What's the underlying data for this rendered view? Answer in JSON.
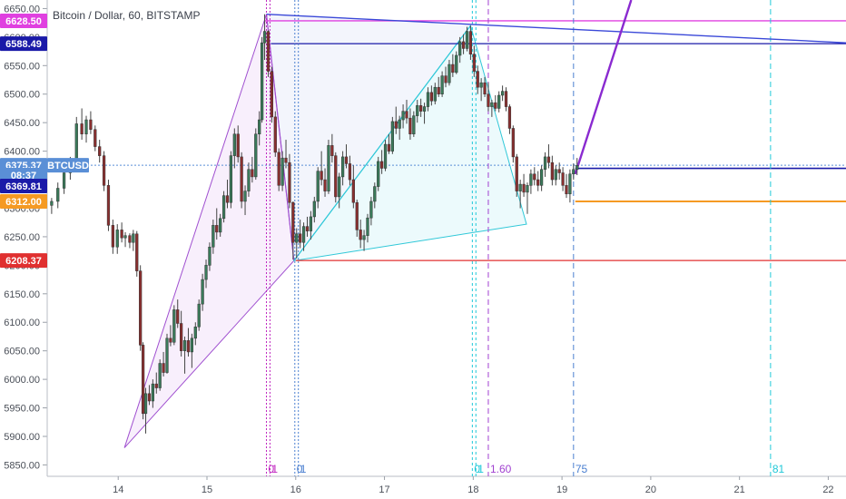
{
  "chart_data": {
    "type": "candlestick",
    "title": "Bitcoin / Dollar, 60, BITSTAMP",
    "symbol_label": "BTCUSD",
    "ylim": [
      5830,
      6665
    ],
    "xlim": [
      13.2,
      22.2
    ],
    "y_ticks": [
      "5850.00",
      "5900.00",
      "5950.00",
      "6000.00",
      "6050.00",
      "6100.00",
      "6150.00",
      "6200.00",
      "6250.00",
      "6300.00",
      "6350.00",
      "6400.00",
      "6450.00",
      "6500.00",
      "6550.00",
      "6600.00",
      "6650.00"
    ],
    "x_ticks": [
      "14",
      "15",
      "16",
      "17",
      "18",
      "19",
      "20",
      "21",
      "22"
    ],
    "price_badges": [
      {
        "label": "6628.50",
        "value": 6628.5,
        "color": "#e040e0"
      },
      {
        "label": "6588.49",
        "value": 6588.49,
        "color": "#1a1aa8"
      },
      {
        "label": "BTCUSD",
        "value": 6375.37,
        "color": "#5a8fd6"
      },
      {
        "label": "6375.37",
        "value": 6375.37,
        "color": "#5a8fd6"
      },
      {
        "label": "08:37",
        "value": 6358,
        "color": "#5a8fd6"
      },
      {
        "label": "6369.81",
        "value": 6339,
        "color": "#1a1aa8"
      },
      {
        "label": "6312.00",
        "value": 6312.0,
        "color": "#f59a23"
      },
      {
        "label": "6208.37",
        "value": 6208.37,
        "color": "#e03030"
      }
    ],
    "horizontal_lines": [
      {
        "y": 6628.5,
        "x_start": 15.65,
        "color": "#e040e0",
        "width": 1.4,
        "dash": "none"
      },
      {
        "y": 6588.49,
        "x_start": 15.72,
        "color": "#1a1aa8",
        "width": 1.2,
        "dash": "none"
      },
      {
        "y": 6369.81,
        "x_start": 19.15,
        "color": "#1a1aa8",
        "width": 1.6,
        "dash": "none"
      },
      {
        "y": 6312.0,
        "x_start": 19.15,
        "color": "#f59a23",
        "width": 2,
        "dash": "none"
      },
      {
        "y": 6208.37,
        "x_start": 16.0,
        "color": "#e03030",
        "width": 1.2,
        "dash": "none"
      },
      {
        "y": 6375.37,
        "x_start": 13.2,
        "color": "#5a8fd6",
        "width": 1,
        "dash": "2,2"
      }
    ],
    "vertical_lines": [
      {
        "x": 15.67,
        "color": "#c026c0",
        "dash": "2,2",
        "label": "0"
      },
      {
        "x": 15.71,
        "color": "#c026c0",
        "dash": "2,2",
        "label": "1"
      },
      {
        "x": 15.99,
        "color": "#4a7fd0",
        "dash": "2,2",
        "label": "0"
      },
      {
        "x": 16.03,
        "color": "#4a7fd0",
        "dash": "2,2",
        "label": "1"
      },
      {
        "x": 17.99,
        "color": "#1fc8d8",
        "dash": "3,3",
        "label": "0"
      },
      {
        "x": 18.03,
        "color": "#1fc8d8",
        "dash": "3,3",
        "label": "1"
      },
      {
        "x": 18.17,
        "color": "#a040d0",
        "dash": "6,4",
        "label": "1.60"
      },
      {
        "x": 19.13,
        "color": "#4a7fd0",
        "dash": "6,4",
        "label": "75"
      },
      {
        "x": 21.35,
        "color": "#1fc8d8",
        "dash": "6,4",
        "label": "81"
      }
    ],
    "pattern_points": {
      "X": [
        14.07,
        5880
      ],
      "A": [
        15.67,
        6640
      ],
      "B": [
        15.98,
        6208
      ],
      "C": [
        17.97,
        6620
      ],
      "D_ext": [
        18.6,
        6272
      ],
      "trend_start": [
        15.67,
        6640
      ],
      "trend_end": [
        22.2,
        6590
      ],
      "proj_start": [
        19.15,
        6360
      ],
      "proj_end": [
        19.78,
        6665
      ]
    },
    "candles": [
      [
        13.25,
        6305,
        6318,
        6290,
        6312
      ],
      [
        13.32,
        6312,
        6345,
        6300,
        6335
      ],
      [
        13.39,
        6335,
        6370,
        6325,
        6362
      ],
      [
        13.46,
        6362,
        6390,
        6350,
        6378
      ],
      [
        13.53,
        6378,
        6460,
        6370,
        6448
      ],
      [
        13.59,
        6448,
        6475,
        6420,
        6430
      ],
      [
        13.64,
        6430,
        6462,
        6415,
        6455
      ],
      [
        13.69,
        6455,
        6470,
        6430,
        6438
      ],
      [
        13.74,
        6438,
        6445,
        6400,
        6408
      ],
      [
        13.79,
        6408,
        6420,
        6380,
        6392
      ],
      [
        13.84,
        6392,
        6400,
        6330,
        6340
      ],
      [
        13.89,
        6340,
        6350,
        6260,
        6270
      ],
      [
        13.94,
        6270,
        6280,
        6220,
        6232
      ],
      [
        13.99,
        6232,
        6272,
        6220,
        6262
      ],
      [
        14.04,
        6262,
        6275,
        6240,
        6248
      ],
      [
        14.08,
        6248,
        6258,
        6232,
        6252
      ],
      [
        14.13,
        6252,
        6256,
        6230,
        6240
      ],
      [
        14.17,
        6240,
        6262,
        6225,
        6255
      ],
      [
        14.21,
        6255,
        6260,
        6180,
        6190
      ],
      [
        14.25,
        6190,
        6200,
        6050,
        6060
      ],
      [
        14.28,
        6060,
        6065,
        5930,
        5940
      ],
      [
        14.31,
        5940,
        5985,
        5905,
        5975
      ],
      [
        14.35,
        5975,
        5990,
        5955,
        5962
      ],
      [
        14.39,
        5962,
        6000,
        5950,
        5992
      ],
      [
        14.43,
        5992,
        6012,
        5975,
        5985
      ],
      [
        14.47,
        5985,
        6035,
        5980,
        6028
      ],
      [
        14.51,
        6028,
        6048,
        6005,
        6012
      ],
      [
        14.55,
        6012,
        6080,
        6010,
        6072
      ],
      [
        14.59,
        6072,
        6095,
        6058,
        6065
      ],
      [
        14.63,
        6065,
        6130,
        6060,
        6122
      ],
      [
        14.67,
        6122,
        6140,
        6090,
        6098
      ],
      [
        14.71,
        6098,
        6120,
        6040,
        6050
      ],
      [
        14.75,
        6050,
        6075,
        6010,
        6068
      ],
      [
        14.79,
        6068,
        6090,
        6040,
        6048
      ],
      [
        14.83,
        6048,
        6080,
        6020,
        6072
      ],
      [
        14.87,
        6072,
        6100,
        6060,
        6092
      ],
      [
        14.91,
        6092,
        6140,
        6085,
        6132
      ],
      [
        14.95,
        6132,
        6185,
        6120,
        6175
      ],
      [
        14.99,
        6175,
        6210,
        6160,
        6200
      ],
      [
        15.03,
        6200,
        6240,
        6190,
        6232
      ],
      [
        15.07,
        6232,
        6280,
        6220,
        6270
      ],
      [
        15.11,
        6270,
        6300,
        6245,
        6258
      ],
      [
        15.15,
        6258,
        6290,
        6250,
        6282
      ],
      [
        15.19,
        6282,
        6330,
        6275,
        6322
      ],
      [
        15.23,
        6322,
        6350,
        6300,
        6310
      ],
      [
        15.27,
        6310,
        6400,
        6300,
        6392
      ],
      [
        15.31,
        6392,
        6440,
        6370,
        6430
      ],
      [
        15.35,
        6430,
        6445,
        6380,
        6390
      ],
      [
        15.39,
        6390,
        6398,
        6300,
        6312
      ],
      [
        15.43,
        6312,
        6340,
        6288,
        6330
      ],
      [
        15.47,
        6330,
        6380,
        6320,
        6368
      ],
      [
        15.51,
        6368,
        6390,
        6345,
        6355
      ],
      [
        15.55,
        6355,
        6440,
        6350,
        6430
      ],
      [
        15.59,
        6430,
        6470,
        6410,
        6455
      ],
      [
        15.62,
        6455,
        6600,
        6450,
        6590
      ],
      [
        15.65,
        6590,
        6640,
        6560,
        6610
      ],
      [
        15.69,
        6610,
        6612,
        6530,
        6540
      ],
      [
        15.73,
        6540,
        6548,
        6450,
        6460
      ],
      [
        15.77,
        6460,
        6470,
        6390,
        6398
      ],
      [
        15.81,
        6398,
        6405,
        6330,
        6340
      ],
      [
        15.85,
        6340,
        6400,
        6330,
        6388
      ],
      [
        15.89,
        6388,
        6420,
        6370,
        6380
      ],
      [
        15.93,
        6380,
        6395,
        6300,
        6310
      ],
      [
        15.97,
        6310,
        6312,
        6210,
        6240
      ],
      [
        16.01,
        6240,
        6265,
        6212,
        6255
      ],
      [
        16.05,
        6255,
        6280,
        6230,
        6240
      ],
      [
        16.09,
        6240,
        6275,
        6225,
        6268
      ],
      [
        16.13,
        6268,
        6285,
        6250,
        6260
      ],
      [
        16.17,
        6260,
        6295,
        6245,
        6285
      ],
      [
        16.21,
        6285,
        6320,
        6275,
        6312
      ],
      [
        16.25,
        6312,
        6372,
        6300,
        6365
      ],
      [
        16.29,
        6365,
        6400,
        6340,
        6350
      ],
      [
        16.33,
        6350,
        6370,
        6320,
        6330
      ],
      [
        16.37,
        6330,
        6420,
        6325,
        6410
      ],
      [
        16.41,
        6410,
        6430,
        6380,
        6392
      ],
      [
        16.45,
        6392,
        6398,
        6310,
        6320
      ],
      [
        16.49,
        6320,
        6362,
        6300,
        6355
      ],
      [
        16.53,
        6355,
        6400,
        6340,
        6390
      ],
      [
        16.57,
        6390,
        6412,
        6370,
        6378
      ],
      [
        16.61,
        6378,
        6392,
        6340,
        6350
      ],
      [
        16.65,
        6350,
        6375,
        6300,
        6310
      ],
      [
        16.69,
        6310,
        6315,
        6250,
        6262
      ],
      [
        16.73,
        6262,
        6280,
        6230,
        6245
      ],
      [
        16.77,
        6245,
        6262,
        6225,
        6252
      ],
      [
        16.81,
        6252,
        6290,
        6240,
        6283
      ],
      [
        16.85,
        6283,
        6320,
        6270,
        6312
      ],
      [
        16.89,
        6312,
        6345,
        6300,
        6338
      ],
      [
        16.93,
        6338,
        6390,
        6330,
        6382
      ],
      [
        16.97,
        6382,
        6402,
        6360,
        6370
      ],
      [
        17.01,
        6370,
        6420,
        6365,
        6412
      ],
      [
        17.05,
        6412,
        6430,
        6395,
        6400
      ],
      [
        17.09,
        6400,
        6460,
        6395,
        6452
      ],
      [
        17.13,
        6452,
        6478,
        6430,
        6440
      ],
      [
        17.17,
        6440,
        6462,
        6420,
        6455
      ],
      [
        17.21,
        6455,
        6482,
        6440,
        6470
      ],
      [
        17.25,
        6470,
        6490,
        6448,
        6458
      ],
      [
        17.29,
        6458,
        6475,
        6420,
        6430
      ],
      [
        17.33,
        6430,
        6470,
        6425,
        6462
      ],
      [
        17.37,
        6462,
        6490,
        6450,
        6480
      ],
      [
        17.41,
        6480,
        6492,
        6460,
        6470
      ],
      [
        17.45,
        6470,
        6485,
        6448,
        6478
      ],
      [
        17.49,
        6478,
        6512,
        6470,
        6503
      ],
      [
        17.53,
        6503,
        6515,
        6480,
        6488
      ],
      [
        17.57,
        6488,
        6520,
        6482,
        6512
      ],
      [
        17.61,
        6512,
        6530,
        6495,
        6500
      ],
      [
        17.65,
        6500,
        6540,
        6495,
        6532
      ],
      [
        17.69,
        6532,
        6548,
        6512,
        6520
      ],
      [
        17.73,
        6520,
        6560,
        6515,
        6552
      ],
      [
        17.77,
        6552,
        6570,
        6530,
        6538
      ],
      [
        17.81,
        6538,
        6575,
        6535,
        6568
      ],
      [
        17.85,
        6568,
        6600,
        6555,
        6592
      ],
      [
        17.89,
        6592,
        6605,
        6570,
        6580
      ],
      [
        17.93,
        6580,
        6618,
        6575,
        6610
      ],
      [
        17.97,
        6610,
        6620,
        6560,
        6570
      ],
      [
        18.01,
        6570,
        6585,
        6530,
        6540
      ],
      [
        18.05,
        6540,
        6550,
        6500,
        6512
      ],
      [
        18.09,
        6512,
        6528,
        6488,
        6520
      ],
      [
        18.13,
        6520,
        6530,
        6495,
        6500
      ],
      [
        18.17,
        6500,
        6520,
        6470,
        6478
      ],
      [
        18.21,
        6478,
        6490,
        6460,
        6485
      ],
      [
        18.25,
        6485,
        6498,
        6470,
        6475
      ],
      [
        18.29,
        6475,
        6505,
        6468,
        6498
      ],
      [
        18.33,
        6498,
        6515,
        6488,
        6505
      ],
      [
        18.37,
        6505,
        6512,
        6470,
        6478
      ],
      [
        18.41,
        6478,
        6482,
        6430,
        6440
      ],
      [
        18.45,
        6440,
        6445,
        6380,
        6390
      ],
      [
        18.49,
        6390,
        6395,
        6320,
        6330
      ],
      [
        18.53,
        6330,
        6350,
        6300,
        6342
      ],
      [
        18.57,
        6342,
        6360,
        6320,
        6328
      ],
      [
        18.61,
        6328,
        6345,
        6290,
        6340
      ],
      [
        18.65,
        6340,
        6368,
        6325,
        6360
      ],
      [
        18.69,
        6360,
        6372,
        6340,
        6350
      ],
      [
        18.73,
        6350,
        6365,
        6330,
        6340
      ],
      [
        18.77,
        6340,
        6375,
        6330,
        6368
      ],
      [
        18.81,
        6368,
        6398,
        6355,
        6390
      ],
      [
        18.85,
        6390,
        6412,
        6370,
        6380
      ],
      [
        18.89,
        6380,
        6392,
        6340,
        6350
      ],
      [
        18.93,
        6350,
        6375,
        6340,
        6368
      ],
      [
        18.97,
        6368,
        6380,
        6350,
        6362
      ],
      [
        19.01,
        6362,
        6372,
        6330,
        6340
      ],
      [
        19.05,
        6340,
        6360,
        6318,
        6325
      ],
      [
        19.09,
        6325,
        6368,
        6310,
        6360
      ],
      [
        19.13,
        6360,
        6378,
        6350,
        6368
      ],
      [
        19.17,
        6368,
        6388,
        6358,
        6375
      ]
    ]
  }
}
